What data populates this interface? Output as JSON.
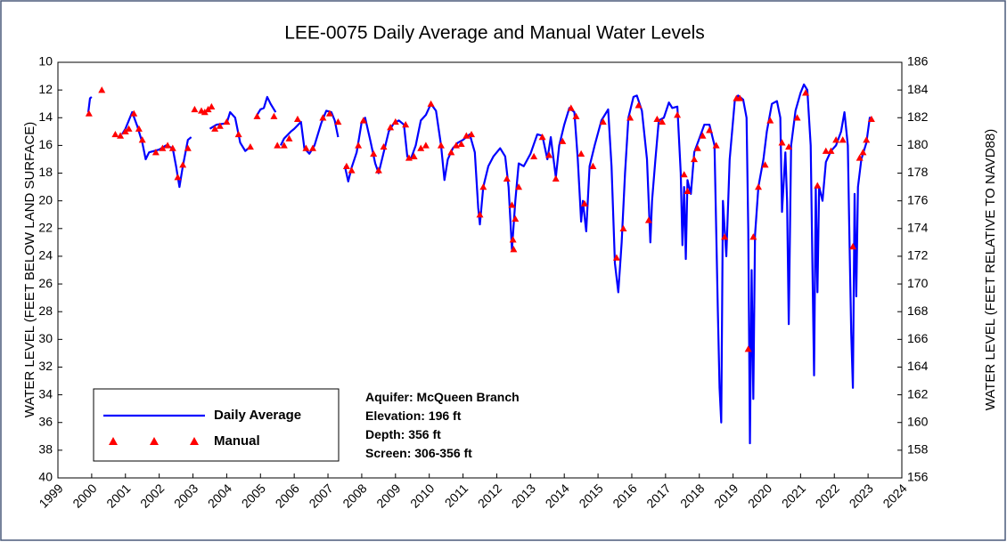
{
  "chart_data": {
    "type": "line",
    "title": "LEE-0075 Daily Average and Manual Water Levels",
    "y_label": "WATER LEVEL (FEET BELOW LAND SURFACE)",
    "y2_label": "WATER LEVEL (FEET RELATIVE TO NAVD88)",
    "annotations": [
      "Aquifer: McQueen Branch",
      "Elevation: 196 ft",
      "Depth: 356 ft",
      "Screen: 306-356 ft"
    ],
    "xlim": [
      1999,
      2024
    ],
    "xticks": [
      1999,
      2000,
      2001,
      2002,
      2003,
      2004,
      2005,
      2006,
      2007,
      2008,
      2009,
      2010,
      2011,
      2012,
      2013,
      2014,
      2015,
      2016,
      2017,
      2018,
      2019,
      2020,
      2021,
      2022,
      2023,
      2024
    ],
    "ylim": [
      10,
      40
    ],
    "y_inverted": true,
    "yticks": [
      10,
      12,
      14,
      16,
      18,
      20,
      22,
      24,
      26,
      28,
      30,
      32,
      34,
      36,
      38,
      40
    ],
    "y2lim": [
      186,
      156
    ],
    "y2ticks": [
      186,
      184,
      182,
      180,
      178,
      176,
      174,
      172,
      170,
      168,
      166,
      164,
      162,
      160,
      158,
      156
    ],
    "grid": false,
    "legend": "lower left",
    "series": [
      {
        "name": "Daily Average",
        "color": "#0000ff",
        "marker": "line",
        "x": [
          1999.9,
          1999.95,
          2000.0,
          null,
          2000.9,
          2001.0,
          2001.2,
          2001.35,
          2001.5,
          2001.6,
          2001.7,
          2002.0,
          2002.2,
          2002.4,
          2002.5,
          2002.6,
          2002.7,
          2002.85,
          2002.95,
          null,
          2003.5,
          2003.7,
          2004.0,
          2004.1,
          2004.25,
          2004.4,
          2004.55,
          2004.65,
          null,
          2004.9,
          2005.0,
          2005.1,
          2005.2,
          2005.3,
          2005.45,
          null,
          2005.6,
          2005.7,
          2005.9,
          2006.0,
          2006.2,
          2006.3,
          2006.45,
          2006.6,
          2006.8,
          2006.95,
          2007.1,
          2007.2,
          2007.3,
          null,
          2007.5,
          2007.6,
          2007.7,
          2007.85,
          2008.0,
          2008.1,
          2008.25,
          2008.4,
          2008.5,
          2008.6,
          2008.8,
          2008.95,
          2009.1,
          2009.25,
          2009.35,
          2009.45,
          2009.6,
          2009.75,
          2009.9,
          2010.05,
          2010.2,
          2010.35,
          2010.45,
          2010.55,
          2010.7,
          2010.85,
          2011.0,
          2011.2,
          2011.35,
          2011.45,
          2011.5,
          2011.6,
          2011.75,
          2011.9,
          2012.1,
          2012.25,
          2012.35,
          2012.45,
          2012.55,
          2012.65,
          2012.8,
          2013.0,
          2013.2,
          2013.35,
          2013.5,
          2013.6,
          2013.75,
          2013.85,
          2014.0,
          2014.15,
          2014.3,
          2014.4,
          2014.5,
          2014.55,
          2014.65,
          2014.75,
          2014.9,
          2015.1,
          2015.3,
          2015.4,
          2015.5,
          2015.6,
          2015.7,
          2015.8,
          2015.9,
          2016.05,
          2016.15,
          2016.3,
          2016.45,
          2016.55,
          2016.6,
          2016.7,
          2016.8,
          2016.95,
          2017.1,
          2017.2,
          2017.35,
          2017.45,
          2017.5,
          2017.55,
          2017.6,
          2017.65,
          2017.75,
          2017.85,
          2018.0,
          2018.15,
          2018.3,
          2018.45,
          2018.5,
          2018.55,
          2018.6,
          2018.65,
          2018.7,
          2018.8,
          2018.9,
          2019.05,
          2019.15,
          2019.3,
          2019.4,
          2019.45,
          2019.5,
          2019.55,
          2019.6,
          2019.65,
          2019.75,
          2019.9,
          2020.0,
          2020.15,
          2020.3,
          2020.4,
          2020.45,
          2020.55,
          2020.6,
          2020.65,
          2020.72,
          2020.85,
          2021.0,
          2021.1,
          2021.2,
          2021.3,
          2021.35,
          2021.4,
          2021.45,
          2021.5,
          2021.55,
          2021.65,
          2021.75,
          2021.9,
          2022.05,
          2022.2,
          2022.3,
          2022.4,
          2022.45,
          2022.5,
          2022.55,
          2022.6,
          2022.65,
          2022.7,
          2022.8,
          2022.95,
          2023.05,
          2023.15
        ],
        "values": [
          13.6,
          12.6,
          12.5,
          null,
          15.2,
          14.8,
          13.6,
          14.6,
          15.8,
          17.0,
          16.5,
          16.3,
          16.0,
          16.2,
          17.5,
          19.0,
          17.5,
          15.6,
          15.4,
          null,
          14.8,
          14.5,
          14.4,
          13.6,
          14.0,
          15.8,
          16.4,
          16.2,
          null,
          13.8,
          13.4,
          13.3,
          12.5,
          13.0,
          13.6,
          null,
          16.0,
          15.5,
          15.0,
          14.8,
          14.3,
          16.2,
          16.6,
          16.0,
          14.4,
          13.5,
          13.6,
          14.2,
          15.4,
          null,
          17.5,
          18.6,
          17.6,
          16.5,
          14.3,
          14.0,
          15.6,
          17.3,
          18.0,
          17.0,
          15.0,
          14.4,
          14.2,
          14.5,
          16.8,
          17.0,
          16.0,
          14.2,
          13.8,
          13.0,
          13.5,
          16.0,
          18.5,
          17.0,
          16.2,
          15.8,
          15.6,
          15.2,
          16.5,
          20.5,
          21.7,
          19.0,
          17.5,
          16.8,
          16.2,
          16.8,
          19.0,
          23.5,
          20.0,
          17.3,
          17.5,
          16.6,
          15.2,
          15.3,
          17.0,
          15.4,
          18.3,
          16.0,
          14.5,
          13.3,
          13.6,
          17.0,
          21.5,
          20.0,
          22.2,
          17.5,
          16.0,
          14.2,
          13.4,
          17.5,
          24.5,
          26.6,
          23.0,
          18.0,
          14.0,
          12.5,
          12.4,
          13.5,
          17.0,
          23.0,
          20.0,
          17.0,
          14.2,
          14.0,
          12.9,
          13.3,
          13.2,
          18.0,
          23.2,
          19.0,
          24.2,
          18.5,
          19.5,
          16.5,
          15.5,
          14.5,
          14.5,
          16.0,
          22.0,
          28.0,
          33.5,
          36.0,
          20.0,
          24.0,
          17.0,
          12.8,
          12.4,
          12.7,
          14.0,
          22.0,
          37.5,
          25.0,
          34.3,
          22.5,
          19.0,
          17.0,
          15.0,
          13.0,
          12.8,
          14.0,
          20.8,
          16.5,
          20.0,
          28.9,
          16.0,
          13.5,
          12.2,
          11.6,
          12.0,
          16.0,
          24.5,
          32.6,
          19.0,
          26.6,
          19.0,
          20.0,
          17.2,
          16.4,
          16.0,
          15.0,
          13.6,
          16.0,
          23.0,
          29.5,
          33.5,
          19.5,
          26.9,
          19.0,
          17.0,
          15.8,
          14.0,
          14.2
        ]
      },
      {
        "name": "Manual",
        "color": "#ff0000",
        "marker": "triangle",
        "x": [
          1999.92,
          2000.3,
          2000.7,
          2000.85,
          2001.0,
          2001.1,
          2001.25,
          2001.4,
          2001.5,
          2001.9,
          2002.1,
          2002.25,
          2002.4,
          2002.55,
          2002.7,
          2002.85,
          2003.05,
          2003.25,
          2003.35,
          2003.45,
          2003.55,
          2003.65,
          2003.8,
          2004.0,
          2004.35,
          2004.7,
          2004.9,
          2005.4,
          2005.5,
          2005.7,
          2005.85,
          2006.1,
          2006.35,
          2006.55,
          2006.85,
          2007.05,
          2007.3,
          2007.55,
          2007.7,
          2007.9,
          2008.05,
          2008.35,
          2008.5,
          2008.65,
          2008.85,
          2009.0,
          2009.3,
          2009.4,
          2009.55,
          2009.75,
          2009.9,
          2010.05,
          2010.35,
          2010.65,
          2010.8,
          2010.95,
          2011.1,
          2011.25,
          2011.5,
          2011.6,
          2012.3,
          2012.45,
          2012.48,
          2012.5,
          2012.55,
          2012.65,
          2013.1,
          2013.35,
          2013.55,
          2013.75,
          2013.95,
          2014.2,
          2014.35,
          2014.5,
          2014.6,
          2014.85,
          2015.15,
          2015.55,
          2015.75,
          2015.95,
          2016.2,
          2016.5,
          2016.75,
          2016.9,
          2017.35,
          2017.55,
          2017.65,
          2017.85,
          2017.95,
          2018.1,
          2018.3,
          2018.5,
          2018.75,
          2019.1,
          2019.2,
          2019.45,
          2019.6,
          2019.75,
          2019.95,
          2020.1,
          2020.45,
          2020.65,
          2020.9,
          2021.15,
          2021.5,
          2021.75,
          2021.9,
          2022.05,
          2022.25,
          2022.55,
          2022.75,
          2022.85,
          2022.95,
          2023.1
        ],
        "values": [
          13.7,
          12.0,
          15.2,
          15.3,
          15.0,
          14.8,
          13.7,
          14.8,
          15.6,
          16.5,
          16.2,
          16.0,
          16.2,
          18.3,
          17.4,
          16.2,
          13.4,
          13.5,
          13.6,
          13.4,
          13.2,
          14.8,
          14.6,
          14.3,
          15.2,
          16.1,
          13.9,
          13.9,
          16.0,
          16.0,
          15.5,
          14.1,
          16.2,
          16.2,
          14.0,
          13.7,
          14.3,
          17.5,
          17.8,
          16.0,
          14.2,
          16.6,
          17.8,
          16.1,
          14.7,
          14.3,
          14.5,
          16.9,
          16.8,
          16.2,
          16.0,
          13.0,
          16.0,
          16.5,
          16.0,
          15.9,
          15.3,
          15.2,
          21.0,
          19.0,
          18.4,
          20.3,
          22.8,
          23.5,
          21.3,
          19.0,
          16.8,
          15.4,
          16.7,
          18.4,
          15.7,
          13.3,
          13.9,
          16.6,
          20.2,
          17.5,
          14.3,
          24.1,
          22.0,
          14.0,
          13.1,
          21.4,
          14.1,
          14.3,
          13.8,
          18.1,
          19.3,
          17.0,
          16.2,
          15.3,
          14.9,
          16.0,
          22.6,
          12.6,
          12.6,
          30.7,
          22.6,
          19.0,
          17.4,
          14.2,
          15.8,
          16.1,
          14.0,
          12.2,
          18.9,
          16.4,
          16.4,
          15.6,
          15.6,
          23.3,
          16.9,
          16.5,
          15.6,
          14.1
        ]
      }
    ]
  }
}
